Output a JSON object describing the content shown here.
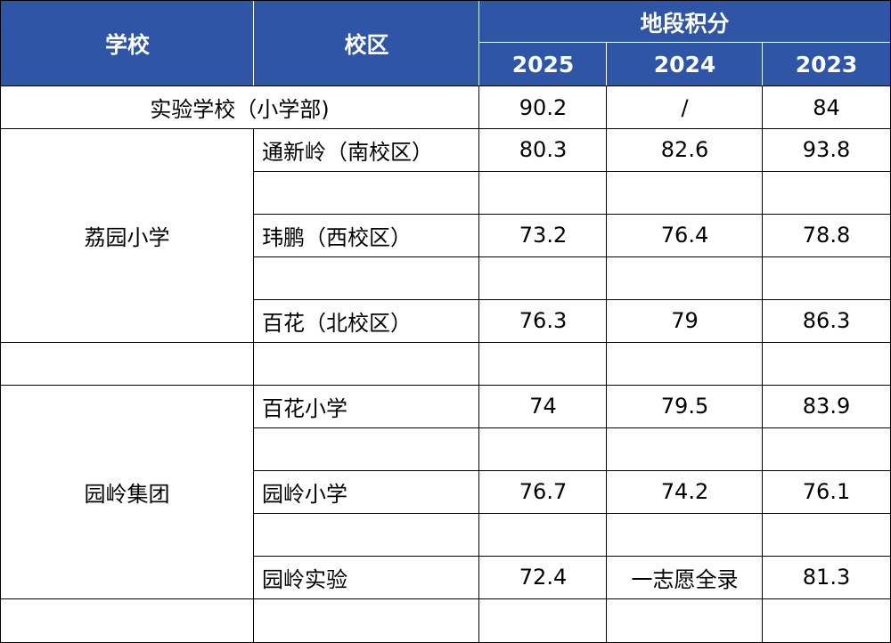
{
  "header": {
    "school": "学校",
    "campus": "校区",
    "score_group": "地段积分",
    "years": [
      "2025",
      "2024",
      "2023"
    ]
  },
  "rows": {
    "shiyan": {
      "school": "实验学校（小学部)",
      "values": [
        "90.2",
        "/",
        "84"
      ]
    },
    "liyuan": {
      "school": "荔园小学",
      "campuses": [
        {
          "name": "通新岭（南校区）",
          "values": [
            "80.3",
            "82.6",
            "93.8"
          ]
        },
        {
          "name": "玮鹏（西校区）",
          "values": [
            "73.2",
            "76.4",
            "78.8"
          ]
        },
        {
          "name": "百花（北校区）",
          "values": [
            "76.3",
            "79",
            "86.3"
          ]
        }
      ]
    },
    "yuanling": {
      "school": "园岭集团",
      "campuses": [
        {
          "name": "百花小学",
          "values": [
            "74",
            "79.5",
            "83.9"
          ]
        },
        {
          "name": "园岭小学",
          "values": [
            "76.7",
            "74.2",
            "76.1"
          ]
        },
        {
          "name": "园岭实验",
          "values": [
            "72.4",
            "一志愿全录",
            "81.3"
          ]
        }
      ]
    }
  },
  "colors": {
    "header_bg": "#2f55a6",
    "header_text": "#ffffff",
    "grid": "#000000"
  }
}
